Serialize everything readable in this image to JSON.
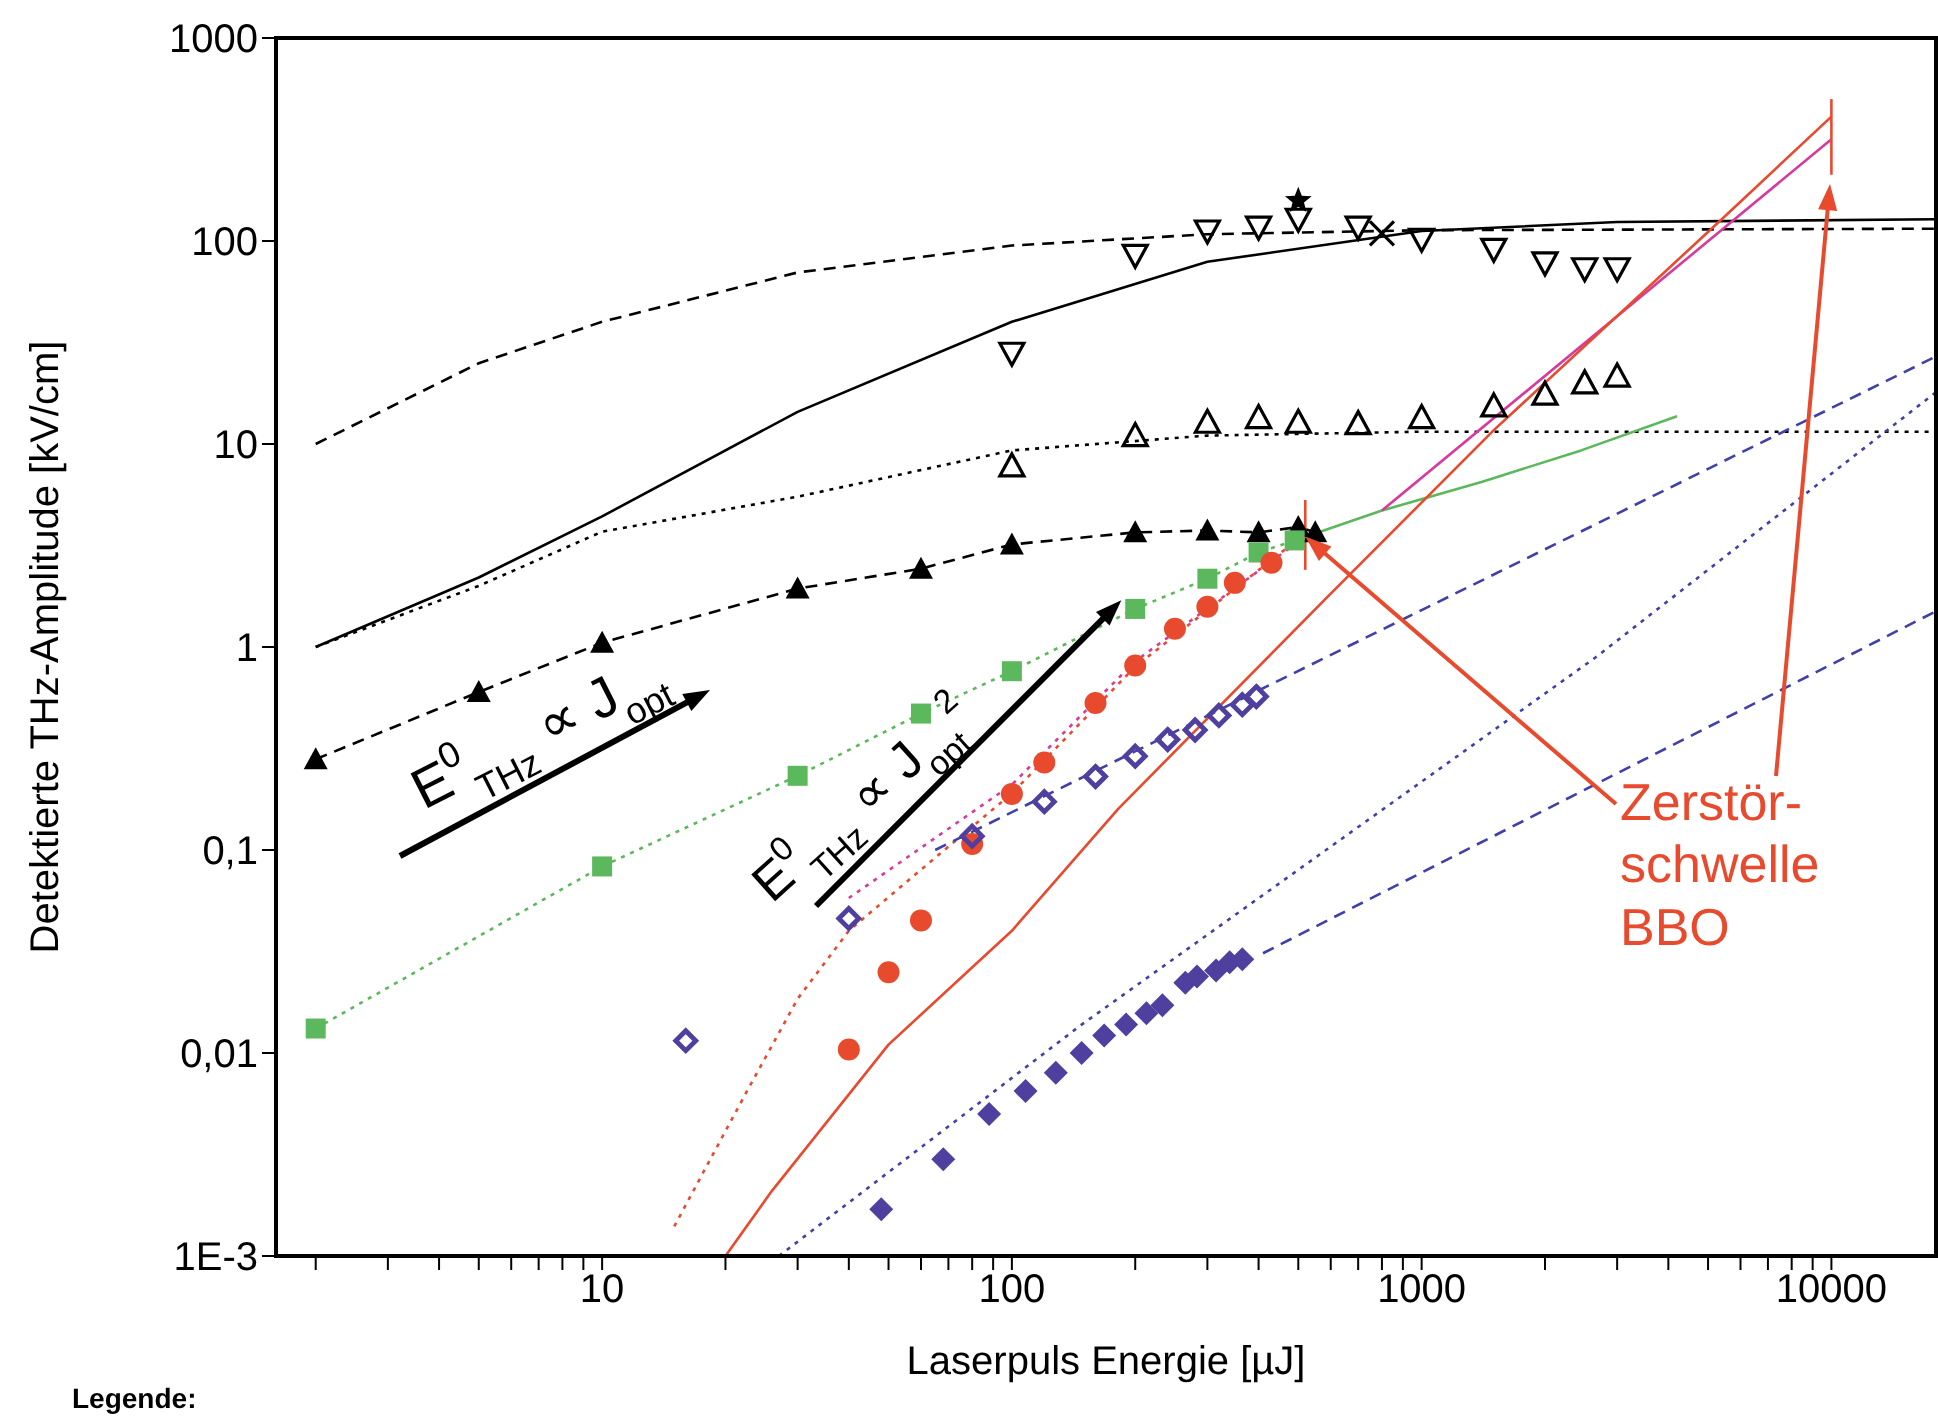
{
  "chart_data": {
    "type": "line",
    "xlabel": "Laserpuls Energie [µJ]",
    "ylabel": "Detektierte THz-Amplitude [kV/cm]",
    "log": "xy",
    "grid": false,
    "legend": false,
    "xlim": [
      1.6,
      18000
    ],
    "ylim": [
      0.001,
      1000
    ],
    "xticks": [
      {
        "value": 2,
        "label": null
      },
      {
        "value": 3,
        "label": null
      },
      {
        "value": 4,
        "label": null
      },
      {
        "value": 5,
        "label": null
      },
      {
        "value": 6,
        "label": null
      },
      {
        "value": 7,
        "label": null
      },
      {
        "value": 8,
        "label": null
      },
      {
        "value": 9,
        "label": null
      },
      10,
      {
        "value": 20,
        "label": null
      },
      {
        "value": 30,
        "label": null
      },
      {
        "value": 40,
        "label": null
      },
      {
        "value": 50,
        "label": null
      },
      {
        "value": 60,
        "label": null
      },
      {
        "value": 70,
        "label": null
      },
      {
        "value": 80,
        "label": null
      },
      {
        "value": 90,
        "label": null
      },
      100,
      {
        "value": 200,
        "label": null
      },
      {
        "value": 300,
        "label": null
      },
      {
        "value": 400,
        "label": null
      },
      {
        "value": 500,
        "label": null
      },
      {
        "value": 600,
        "label": null
      },
      {
        "value": 700,
        "label": null
      },
      {
        "value": 800,
        "label": null
      },
      {
        "value": 900,
        "label": null
      },
      1000,
      {
        "value": 2000,
        "label": null
      },
      {
        "value": 3000,
        "label": null
      },
      {
        "value": 4000,
        "label": null
      },
      {
        "value": 5000,
        "label": null
      },
      {
        "value": 6000,
        "label": null
      },
      {
        "value": 7000,
        "label": null
      },
      {
        "value": 8000,
        "label": null
      },
      {
        "value": 9000,
        "label": null
      },
      10000
    ],
    "yticks": [
      {
        "value": 0.001,
        "label": "1E-3"
      },
      {
        "value": 0.01,
        "label": "0,01"
      },
      {
        "value": 0.1,
        "label": "0,1"
      },
      1,
      10,
      100,
      1000
    ],
    "series": [
      {
        "color": "#000000",
        "line_style": "dashed",
        "marker": "none",
        "x": [
          2,
          5,
          10,
          30,
          100,
          300,
          1000,
          18000
        ],
        "values": [
          10,
          25,
          40,
          70,
          95,
          108,
          113,
          115
        ]
      },
      {
        "type": "line",
        "color": "#000000",
        "line_style": "solid",
        "marker": "none",
        "x": [
          2,
          5,
          10,
          30,
          100,
          300,
          1000,
          3000,
          18000
        ],
        "values": [
          1,
          2.2,
          4.4,
          14.4,
          40,
          79,
          112,
          124,
          128
        ]
      },
      {
        "type": "line",
        "color": "#000000",
        "line_style": "dotted",
        "marker": "none",
        "x": [
          2,
          5,
          10,
          30,
          100,
          300,
          1000,
          18000
        ],
        "values": [
          1,
          2,
          3.7,
          5.5,
          9.3,
          11,
          11.5,
          11.5
        ]
      },
      {
        "type": "scatter",
        "color": "#000000",
        "marker": "triangle_down_open",
        "x": [
          100,
          200,
          300,
          400,
          500,
          700,
          1000,
          1500,
          2000,
          2500,
          3000
        ],
        "values": [
          28,
          85,
          112,
          117,
          128,
          117,
          102,
          91,
          78,
          73,
          73
        ]
      },
      {
        "type": "scatter",
        "color": "#000000",
        "marker": "cross",
        "x": [
          800
        ],
        "values": [
          109
        ]
      },
      {
        "type": "scatter",
        "color": "#000000",
        "marker": "star",
        "x": [
          500
        ],
        "values": [
          158
        ]
      },
      {
        "type": "scatter",
        "color": "#000000",
        "marker": "triangle_open",
        "x": [
          100,
          200,
          300,
          400,
          500,
          700,
          1000,
          1500,
          2000,
          2500,
          3000
        ],
        "values": [
          7.8,
          11,
          12.8,
          13.5,
          12.8,
          12.6,
          13.5,
          15.4,
          17.6,
          20,
          21.6
        ]
      },
      {
        "type": "line",
        "color": "#000000",
        "line_style": "dashed",
        "marker": "triangle",
        "x": [
          2,
          5,
          10,
          30,
          60,
          100,
          200,
          300,
          400,
          500,
          550
        ],
        "values": [
          0.28,
          0.6,
          1.05,
          1.94,
          2.43,
          3.2,
          3.67,
          3.75,
          3.67,
          3.9,
          3.67
        ]
      },
      {
        "type": "line",
        "color": "#5cb85c",
        "line_style": "dotted",
        "marker": "square",
        "x": [
          2,
          10,
          30,
          60,
          100,
          200,
          300,
          400,
          490
        ],
        "values": [
          0.0132,
          0.083,
          0.232,
          0.47,
          0.76,
          1.54,
          2.17,
          2.92,
          3.35
        ]
      },
      {
        "type": "line",
        "color": "#5cb85c",
        "line_style": "solid",
        "marker": "none",
        "x": [
          490,
          800,
          1400,
          2450,
          4200
        ],
        "values": [
          3.35,
          4.7,
          6.5,
          9.3,
          13.7
        ]
      },
      {
        "type": "scatter",
        "color": "#e84a2e",
        "marker": "circle",
        "x": [
          40,
          50,
          60,
          80,
          100,
          120,
          160,
          200,
          250,
          300,
          350,
          430
        ],
        "values": [
          0.0104,
          0.025,
          0.045,
          0.107,
          0.189,
          0.27,
          0.53,
          0.81,
          1.23,
          1.58,
          2.07,
          2.6
        ]
      },
      {
        "type": "line",
        "color": "#e84a2e",
        "line_style": "dotted",
        "marker": "none",
        "x": [
          15,
          22,
          30,
          40,
          60,
          100,
          200,
          500
        ],
        "values": [
          0.0014,
          0.0059,
          0.0185,
          0.04,
          0.08,
          0.19,
          0.8,
          3.4
        ]
      },
      {
        "type": "line",
        "color": "#d63a9c",
        "line_style": "dotted",
        "marker": "none",
        "x": [
          40,
          100,
          200,
          500
        ],
        "values": [
          0.058,
          0.21,
          0.85,
          3.3
        ]
      },
      {
        "type": "line",
        "color": "#d63a9c",
        "line_style": "solid",
        "marker": "none",
        "x": [
          800,
          10000
        ],
        "values": [
          4.7,
          317
        ]
      },
      {
        "type": "line",
        "color": "#e84a2e",
        "line_style": "solid",
        "marker": "none",
        "x": [
          20,
          26,
          50,
          100,
          182,
          590,
          1500,
          5400,
          10000
        ],
        "values": [
          0.001,
          0.0021,
          0.011,
          0.04,
          0.16,
          1.77,
          11.7,
          128,
          410
        ]
      },
      {
        "type": "line",
        "color": "#e84a2e",
        "line_style": "solid",
        "marker": "none",
        "x": [
          520,
          520
        ],
        "values": [
          2.4,
          5.3
        ]
      },
      {
        "type": "line",
        "color": "#e84a2e",
        "line_style": "solid",
        "marker": "none",
        "x": [
          10000,
          10000
        ],
        "values": [
          212,
          500
        ]
      },
      {
        "type": "line",
        "color": "#4040a8",
        "line_style": "dashed",
        "marker": "none",
        "x": [
          65,
          18000
        ],
        "values": [
          0.1,
          27
        ]
      },
      {
        "type": "scatter",
        "color": "#4f3f9f",
        "marker": "diamond_open",
        "x": [
          16,
          40,
          80,
          120,
          160,
          200,
          240,
          280,
          320,
          365,
          395
        ],
        "values": [
          0.0115,
          0.046,
          0.117,
          0.173,
          0.23,
          0.29,
          0.35,
          0.39,
          0.46,
          0.52,
          0.57
        ]
      },
      {
        "type": "line",
        "color": "#4040a8",
        "line_style": "dotted",
        "marker": "none",
        "x": [
          27,
          148,
          2660,
          18000
        ],
        "values": [
          0.001,
          0.0138,
          0.89,
          18
        ]
      },
      {
        "type": "scatter",
        "color": "#4f3f9f",
        "marker": "diamond",
        "x": [
          48,
          68,
          88,
          108,
          128,
          148,
          168,
          190,
          213,
          233,
          265,
          283,
          315,
          340,
          365
        ],
        "values": [
          0.0017,
          0.003,
          0.005,
          0.0065,
          0.008,
          0.01,
          0.0122,
          0.0138,
          0.0157,
          0.0172,
          0.0222,
          0.0238,
          0.0255,
          0.028,
          0.029
        ]
      },
      {
        "type": "line",
        "color": "#4040a8",
        "line_style": "dashed",
        "marker": "none",
        "x": [
          410,
          18000
        ],
        "values": [
          0.031,
          1.5
        ]
      }
    ],
    "annotations": [
      "E$^{0}$$_{THz}$ ∝ J$_{opt}$",
      {
        "text": "E$^{0}$$_{THz}$ ∝ J$_{opt}$$^{2}$",
        "x": 185,
        "y": 1.7
      },
      {
        "text": "Zerstör-\nschwelle\nBBO",
        "x": 520,
        "y": 3.5
      },
      "Legende:"
    ]
  }
}
